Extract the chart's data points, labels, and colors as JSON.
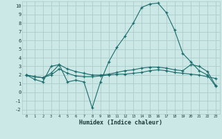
{
  "xlabel": "Humidex (Indice chaleur)",
  "xlim": [
    -0.5,
    23.5
  ],
  "ylim": [
    -2.5,
    10.5
  ],
  "xticks": [
    0,
    1,
    2,
    3,
    4,
    5,
    6,
    7,
    8,
    9,
    10,
    11,
    12,
    13,
    14,
    15,
    16,
    17,
    18,
    19,
    20,
    21,
    22,
    23
  ],
  "yticks": [
    -2,
    -1,
    0,
    1,
    2,
    3,
    4,
    5,
    6,
    7,
    8,
    9,
    10
  ],
  "bg_color": "#cce8e6",
  "grid_color": "#aaccca",
  "line_color": "#1a6b6b",
  "line1_y": [
    2.0,
    1.5,
    1.2,
    3.0,
    3.2,
    1.2,
    1.4,
    1.2,
    -1.8,
    1.2,
    3.5,
    5.2,
    6.5,
    8.0,
    9.8,
    10.2,
    10.3,
    9.2,
    7.2,
    4.5,
    3.5,
    2.5,
    2.0,
    0.7
  ],
  "line2_y": [
    2.0,
    1.8,
    1.7,
    2.0,
    2.7,
    2.2,
    1.9,
    1.8,
    1.8,
    1.9,
    2.0,
    2.1,
    2.1,
    2.2,
    2.3,
    2.5,
    2.6,
    2.5,
    2.3,
    2.2,
    2.1,
    2.0,
    1.8,
    1.6
  ],
  "line3_y": [
    2.0,
    1.8,
    1.7,
    2.2,
    3.2,
    2.7,
    2.4,
    2.2,
    2.0,
    2.0,
    2.1,
    2.3,
    2.5,
    2.6,
    2.8,
    2.9,
    2.9,
    2.8,
    2.6,
    2.5,
    3.2,
    3.0,
    2.4,
    0.8
  ]
}
